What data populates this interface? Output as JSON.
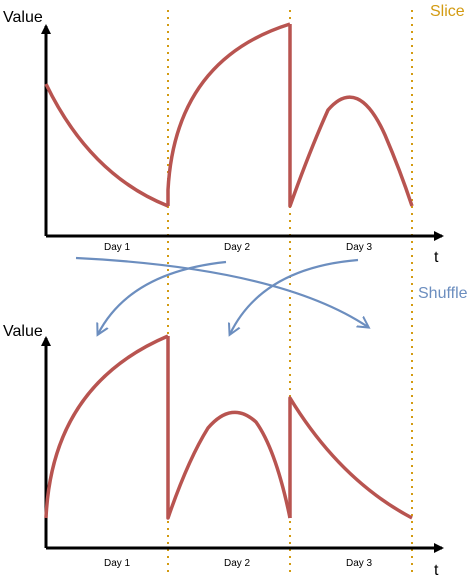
{
  "top_panel": {
    "y_axis_label": "Value",
    "x_axis_label": "t",
    "days": [
      "Day 1",
      "Day 2",
      "Day 3"
    ]
  },
  "bottom_panel": {
    "y_axis_label": "Value",
    "x_axis_label": "t",
    "days": [
      "Day 1",
      "Day 2",
      "Day 3"
    ]
  },
  "labels": {
    "slice": "Slice",
    "shuffle": "Shuffle"
  },
  "colors": {
    "curve": "#b85450",
    "slice_line": "#d39b12",
    "arrow": "#6c8ebf",
    "axis": "#000000"
  }
}
